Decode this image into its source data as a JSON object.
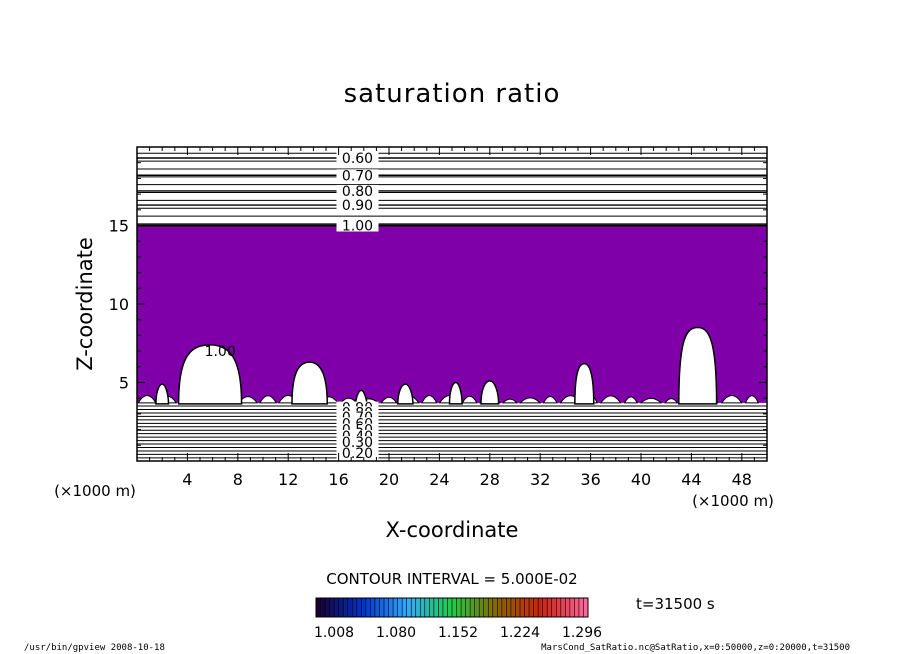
{
  "chart_data": {
    "type": "heatmap",
    "title": "saturation ratio",
    "xlabel": "X-coordinate",
    "ylabel": "Z-coordinate",
    "x_unit": "(×1000 m)",
    "y_unit": "(×1000 m)",
    "xlim": [
      0,
      50
    ],
    "ylim": [
      0,
      20
    ],
    "x_ticks": [
      4,
      8,
      12,
      16,
      20,
      24,
      28,
      32,
      36,
      40,
      44,
      48
    ],
    "y_ticks": [
      5,
      10,
      15
    ],
    "grid": false,
    "upper_contours": {
      "levels": [
        "0.60",
        "0.70",
        "0.80",
        "0.90",
        "1.00"
      ],
      "z_values": [
        19.3,
        18.2,
        17.2,
        16.3,
        15.0
      ]
    },
    "lower_contours": {
      "labels": [
        "0.90",
        "0.80",
        "0.70",
        "0.60",
        "0.50",
        "0.40",
        "0.30",
        "0.20"
      ],
      "z_values": [
        3.4,
        3.1,
        2.8,
        2.4,
        2.0,
        1.6,
        1.2,
        0.5
      ]
    },
    "saturated_region": {
      "z_top": 15.0,
      "z_bottom": 3.7,
      "fill_color": "#7f00a8",
      "boundary_label": "1.00"
    },
    "cloud_tops": [
      {
        "x": 2.0,
        "z_top": 4.9,
        "width": 1.0
      },
      {
        "x": 5.8,
        "z_top": 7.4,
        "width": 5.0
      },
      {
        "x": 13.7,
        "z_top": 6.3,
        "width": 2.8
      },
      {
        "x": 17.8,
        "z_top": 4.5,
        "width": 0.9
      },
      {
        "x": 21.3,
        "z_top": 4.9,
        "width": 1.2
      },
      {
        "x": 25.3,
        "z_top": 5.0,
        "width": 1.0
      },
      {
        "x": 28.0,
        "z_top": 5.1,
        "width": 1.4
      },
      {
        "x": 35.5,
        "z_top": 6.2,
        "width": 1.5
      },
      {
        "x": 44.5,
        "z_top": 8.5,
        "width": 3.0
      }
    ],
    "contour_interval": "CONTOUR INTERVAL = 5.000E-02",
    "time": "t=31500 s",
    "colorbar": {
      "ticks": [
        "1.008",
        "1.080",
        "1.152",
        "1.224",
        "1.296"
      ],
      "colors": [
        "#1a0033",
        "#0033cc",
        "#33aaff",
        "#22cc44",
        "#886600",
        "#cc2211",
        "#ff6699"
      ]
    }
  },
  "footer": {
    "left": "/usr/bin/gpview  2008-10-18",
    "right": "MarsCond_SatRatio.nc@SatRatio,x=0:50000,z=0:20000,t=31500"
  }
}
